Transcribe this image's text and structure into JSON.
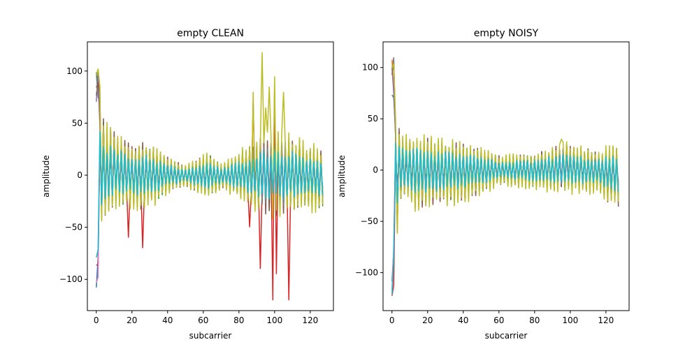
{
  "chart_data": [
    {
      "type": "line",
      "title": "empty CLEAN",
      "xlabel": "subcarrier",
      "ylabel": "amplitude",
      "xlim": [
        -5,
        133
      ],
      "ylim": [
        -130,
        128
      ],
      "xticks": [
        0,
        20,
        40,
        60,
        80,
        100,
        120
      ],
      "yticks": [
        -100,
        -50,
        0,
        50,
        100
      ],
      "grid": false,
      "legend": "none",
      "series_count": 10,
      "envelope": {
        "x": [
          0,
          1,
          2,
          5,
          10,
          20,
          28,
          40,
          50,
          63,
          70,
          80,
          90,
          100,
          110,
          118,
          125,
          127
        ],
        "upper": [
          112,
          110,
          90,
          55,
          50,
          32,
          38,
          20,
          10,
          25,
          12,
          25,
          40,
          45,
          42,
          35,
          30,
          25
        ],
        "lower": [
          -125,
          -110,
          -60,
          -45,
          -35,
          -35,
          -38,
          -20,
          -12,
          -25,
          -15,
          -25,
          -40,
          -45,
          -40,
          -35,
          -42,
          -40
        ],
        "spikes_up": [
          [
            93,
            118
          ],
          [
            97,
            85
          ],
          [
            100,
            95
          ],
          [
            105,
            80
          ],
          [
            95,
            65
          ],
          [
            88,
            80
          ]
        ],
        "spikes_down": [
          [
            92,
            -90
          ],
          [
            99,
            -120
          ],
          [
            108,
            -120
          ],
          [
            101,
            -95
          ],
          [
            86,
            -50
          ],
          [
            18,
            -60
          ],
          [
            26,
            -70
          ]
        ]
      }
    },
    {
      "type": "line",
      "title": "empty NOISY",
      "xlabel": "subcarrier",
      "ylabel": "amplitude",
      "xlim": [
        -5,
        133
      ],
      "ylim": [
        -137,
        125
      ],
      "xticks": [
        0,
        20,
        40,
        60,
        80,
        100,
        120
      ],
      "yticks": [
        -100,
        -50,
        0,
        50,
        100
      ],
      "grid": false,
      "legend": "none",
      "series_count": 10,
      "envelope": {
        "x": [
          0,
          1,
          2,
          5,
          10,
          12,
          20,
          40,
          63,
          65,
          80,
          95,
          100,
          118,
          120,
          127
        ],
        "upper": [
          112,
          110,
          60,
          40,
          35,
          40,
          35,
          30,
          15,
          18,
          18,
          30,
          28,
          20,
          25,
          25
        ],
        "lower": [
          -127,
          -120,
          -95,
          -35,
          -30,
          -45,
          -40,
          -35,
          -15,
          -18,
          -20,
          -25,
          -25,
          -25,
          -35,
          -45
        ],
        "spikes_up": [
          [
            95,
            30
          ],
          [
            98,
            28
          ]
        ],
        "spikes_down": []
      }
    }
  ],
  "colors": [
    "#1f77b4",
    "#ff7f0e",
    "#2ca02c",
    "#d62728",
    "#9467bd",
    "#8c564b",
    "#e377c2",
    "#7f7f7f",
    "#bcbd22",
    "#17becf"
  ]
}
